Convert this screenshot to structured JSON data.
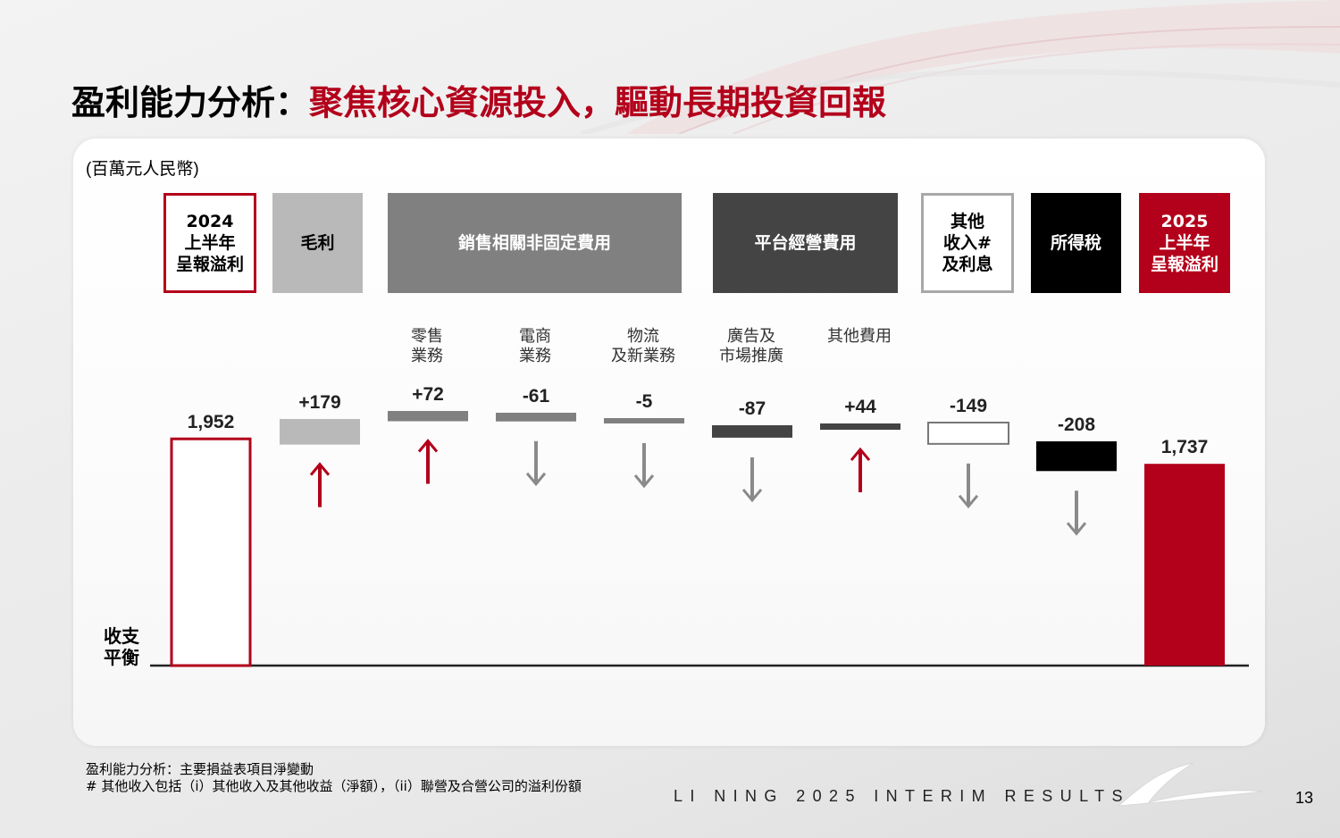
{
  "title": {
    "prefix": "盈利能力分析：",
    "highlight": "聚焦核心資源投入，驅動長期投資回報"
  },
  "unit_label": "(百萬元人民幣)",
  "headers": [
    {
      "key": "h2024",
      "lines": [
        "2024",
        "上半年",
        "呈報溢利"
      ]
    },
    {
      "key": "gross",
      "lines": [
        "毛利"
      ]
    },
    {
      "key": "sales",
      "lines": [
        "銷售相關非固定費用"
      ]
    },
    {
      "key": "platform",
      "lines": [
        "平台經營費用"
      ]
    },
    {
      "key": "other",
      "lines": [
        "其他",
        "收入#",
        "及利息"
      ]
    },
    {
      "key": "tax",
      "lines": [
        "所得稅"
      ]
    },
    {
      "key": "h2025",
      "lines": [
        "2025",
        "上半年",
        "呈報溢利"
      ]
    }
  ],
  "sub_labels": [
    {
      "lines": [
        "零售",
        "業務"
      ]
    },
    {
      "lines": [
        "電商",
        "業務"
      ]
    },
    {
      "lines": [
        "物流",
        "及新業務"
      ]
    },
    {
      "lines": [
        "廣告及",
        "市場推廣"
      ]
    },
    {
      "lines": [
        "其他費用"
      ]
    }
  ],
  "baseline_label": [
    "收支",
    "平衡"
  ],
  "colors": {
    "accent": "#b3001b",
    "light_gray": "#b9b9b9",
    "mid_gray": "#808080",
    "dark_gray": "#444444",
    "black": "#000000",
    "arrow_gray": "#8a8a8a"
  },
  "chart_data": {
    "type": "waterfall",
    "unit": "百萬元人民幣",
    "items": [
      {
        "label": "2024 上半年 呈報溢利",
        "value": 1952,
        "display": "1,952",
        "kind": "total",
        "style": "outline-red"
      },
      {
        "label": "毛利",
        "value": 179,
        "display": "+179",
        "kind": "delta",
        "style": "light-gray",
        "arrow": "up"
      },
      {
        "label": "零售 業務",
        "value": 72,
        "display": "+72",
        "kind": "delta",
        "style": "mid-gray",
        "arrow": "up"
      },
      {
        "label": "電商 業務",
        "value": -61,
        "display": "-61",
        "kind": "delta",
        "style": "mid-gray",
        "arrow": "down"
      },
      {
        "label": "物流 及新業務",
        "value": -5,
        "display": "-5",
        "kind": "delta",
        "style": "mid-gray",
        "arrow": "down"
      },
      {
        "label": "廣告及 市場推廣",
        "value": -87,
        "display": "-87",
        "kind": "delta",
        "style": "dark-gray",
        "arrow": "down"
      },
      {
        "label": "其他費用",
        "value": 44,
        "display": "+44",
        "kind": "delta",
        "style": "dark-gray",
        "arrow": "up"
      },
      {
        "label": "其他 收入# 及利息",
        "value": -149,
        "display": "-149",
        "kind": "delta",
        "style": "outline-gray",
        "arrow": "down"
      },
      {
        "label": "所得稅",
        "value": -208,
        "display": "-208",
        "kind": "delta",
        "style": "black",
        "arrow": "down"
      },
      {
        "label": "2025 上半年 呈報溢利",
        "value": 1737,
        "display": "1,737",
        "kind": "total",
        "style": "solid-red"
      }
    ]
  },
  "footnotes": [
    "盈利能力分析：主要損益表項目淨變動",
    "# 其他收入包括（i）其他收入及其他收益（淨額），（ii）聯營及合營公司的溢利份額"
  ],
  "brand": "LI NING 2025 INTERIM RESULTS",
  "page_number": "13"
}
